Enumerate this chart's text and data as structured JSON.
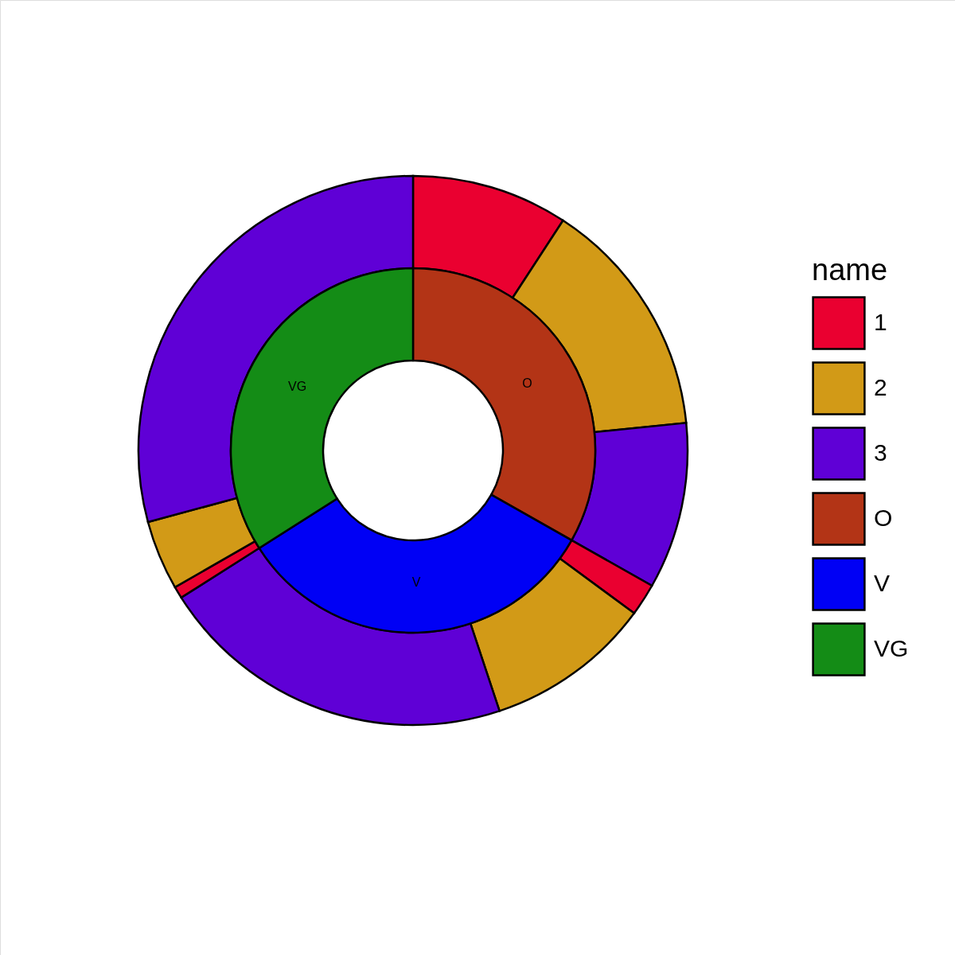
{
  "chart_data": [
    {
      "type": "donut",
      "legend": "right",
      "legend_title": "name",
      "categories": [
        "1",
        "2",
        "3",
        null,
        null,
        null,
        null,
        null,
        null
      ],
      "values": [
        9.2,
        14.2,
        9.8,
        1.9,
        9.8,
        21.1,
        0.7,
        4.1,
        29.2
      ],
      "colors": [
        "#ea0030",
        "#d29a17",
        "#5f00d6",
        "#ea0030",
        "#d29a17",
        "#5f00d6",
        "#ea0030",
        "#d29a17",
        "#5f00d6"
      ]
    },
    {
      "type": "donut",
      "legend": "right",
      "categories": [
        "O",
        "V",
        "VG"
      ],
      "values": [
        33.2,
        32.8,
        34.0
      ],
      "colors": [
        "#b33416",
        "#0000f5",
        "#148c16"
      ]
    }
  ]
}
